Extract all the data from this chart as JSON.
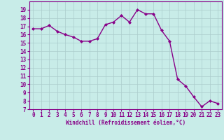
{
  "x": [
    0,
    1,
    2,
    3,
    4,
    5,
    6,
    7,
    8,
    9,
    10,
    11,
    12,
    13,
    14,
    15,
    16,
    17,
    18,
    19,
    20,
    21,
    22,
    23
  ],
  "y": [
    16.7,
    16.7,
    17.1,
    16.4,
    16.0,
    15.7,
    15.2,
    15.2,
    15.5,
    17.2,
    17.5,
    18.3,
    17.5,
    19.0,
    18.5,
    18.5,
    16.5,
    15.2,
    10.6,
    9.8,
    8.5,
    7.3,
    8.0,
    7.7
  ],
  "line_color": "#880088",
  "marker": "D",
  "marker_size": 2,
  "line_width": 1.0,
  "bg_color": "#c8ece8",
  "grid_color": "#aacccc",
  "xlabel": "Windchill (Refroidissement éolien,°C)",
  "xlabel_color": "#880088",
  "tick_color": "#880088",
  "ylim": [
    7,
    20
  ],
  "xlim": [
    -0.5,
    23.5
  ],
  "yticks": [
    7,
    8,
    9,
    10,
    11,
    12,
    13,
    14,
    15,
    16,
    17,
    18,
    19
  ],
  "xticks": [
    0,
    1,
    2,
    3,
    4,
    5,
    6,
    7,
    8,
    9,
    10,
    11,
    12,
    13,
    14,
    15,
    16,
    17,
    18,
    19,
    20,
    21,
    22,
    23
  ]
}
